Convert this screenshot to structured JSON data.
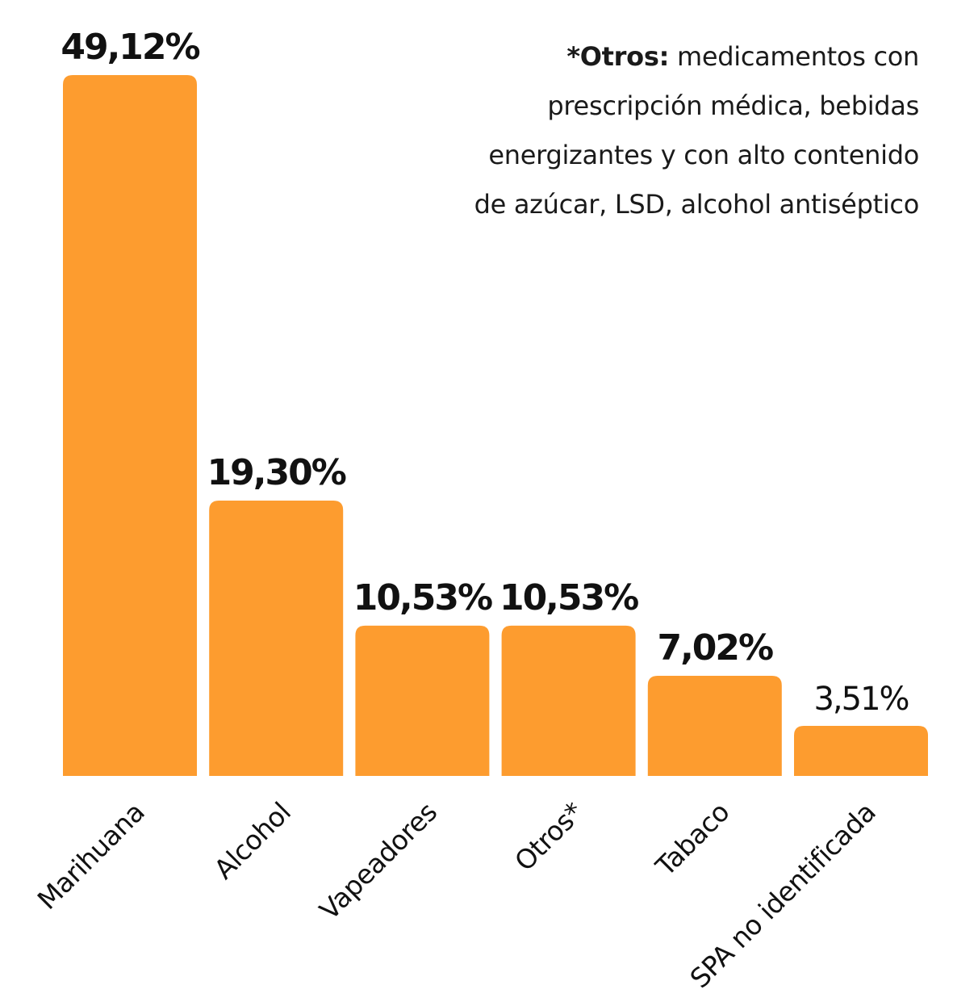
{
  "note": {
    "bold": "*Otros:",
    "text": " medicamentos con prescripción médica, bebidas energizantes y con alto contenido de azúcar, LSD, alcohol antiséptico"
  },
  "chart_data": {
    "type": "bar",
    "categories": [
      "Marihuana",
      "Alcohol",
      "Vapeadores",
      "Otros*",
      "Tabaco",
      "SPA no identificada"
    ],
    "values": [
      49.12,
      19.3,
      10.53,
      10.53,
      7.02,
      3.51
    ],
    "value_labels": [
      "49,12%",
      "19,30%",
      "10,53%",
      "10,53%",
      "7,02%",
      "3,51%"
    ],
    "title": "",
    "xlabel": "",
    "ylabel": "",
    "ylim": [
      0,
      49.12
    ],
    "grid": false,
    "colors": {
      "bar": "#fd9c2f",
      "text": "#111111"
    }
  }
}
